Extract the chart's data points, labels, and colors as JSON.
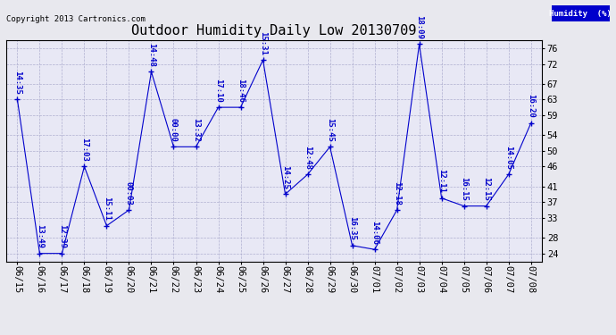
{
  "title": "Outdoor Humidity Daily Low 20130709",
  "copyright": "Copyright 2013 Cartronics.com",
  "legend_label": "Humidity  (%)",
  "x_labels": [
    "06/15",
    "06/16",
    "06/17",
    "06/18",
    "06/19",
    "06/20",
    "06/21",
    "06/22",
    "06/23",
    "06/24",
    "06/25",
    "06/26",
    "06/27",
    "06/28",
    "06/29",
    "06/30",
    "07/01",
    "07/02",
    "07/03",
    "07/04",
    "07/05",
    "07/06",
    "07/07",
    "07/08"
  ],
  "y_values": [
    63,
    24,
    24,
    46,
    31,
    35,
    70,
    51,
    51,
    61,
    61,
    73,
    39,
    44,
    51,
    26,
    25,
    35,
    77,
    38,
    36,
    36,
    44,
    57
  ],
  "point_labels": [
    "14:35",
    "13:49",
    "12:39",
    "17:03",
    "15:11",
    "00:03",
    "14:48",
    "00:00",
    "13:32",
    "17:10",
    "18:46",
    "15:31",
    "14:25",
    "12:48",
    "15:45",
    "16:35",
    "14:06",
    "12:18",
    "18:09",
    "12:11",
    "16:15",
    "12:15",
    "14:05",
    "16:20"
  ],
  "line_color": "#0000cc",
  "marker_color": "#0000cc",
  "text_color": "#0000cc",
  "background_color": "#e8e8ee",
  "plot_bg_color": "#e8e8f5",
  "grid_color": "#aaaacc",
  "ylim_min": 22,
  "ylim_max": 78,
  "yticks": [
    24,
    28,
    33,
    37,
    41,
    46,
    50,
    54,
    59,
    63,
    67,
    72,
    76
  ],
  "title_fontsize": 11,
  "label_fontsize": 6.5,
  "tick_fontsize": 7.5,
  "copyright_fontsize": 6.5
}
